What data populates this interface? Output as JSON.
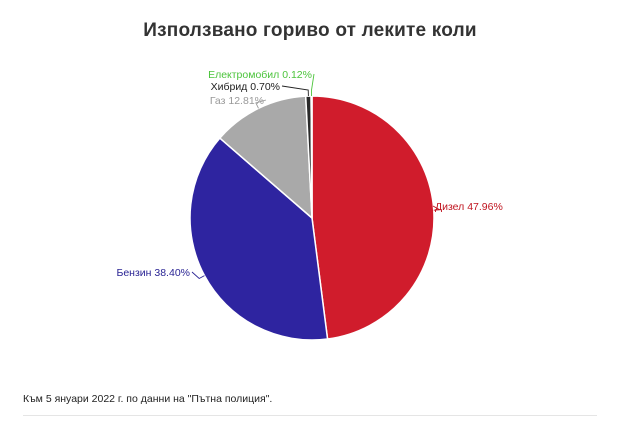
{
  "chart_data": {
    "type": "pie",
    "title": "Използвано гориво от леките коли",
    "slices": [
      {
        "label": "Дизел",
        "value": 47.96,
        "display": "Дизел 47.96%",
        "color": "#d01c2c",
        "label_color": "#c0141f"
      },
      {
        "label": "Бензин",
        "value": 38.4,
        "display": "Бензин 38.40%",
        "color": "#2e24a0",
        "label_color": "#2a2494"
      },
      {
        "label": "Газ",
        "value": 12.81,
        "display": "Газ 12.81%",
        "color": "#a9a9a9",
        "label_color": "#999999"
      },
      {
        "label": "Хибрид",
        "value": 0.7,
        "display": "Хибрид 0.70%",
        "color": "#2a2a2a",
        "label_color": "#222222"
      },
      {
        "label": "Електромобил",
        "value": 0.12,
        "display": "Електромобил 0.12%",
        "color": "#5ad24a",
        "label_color": "#4cc43c"
      }
    ]
  },
  "footer": "Към 5 януари 2022 г. по данни на \"Пътна полиция\"."
}
